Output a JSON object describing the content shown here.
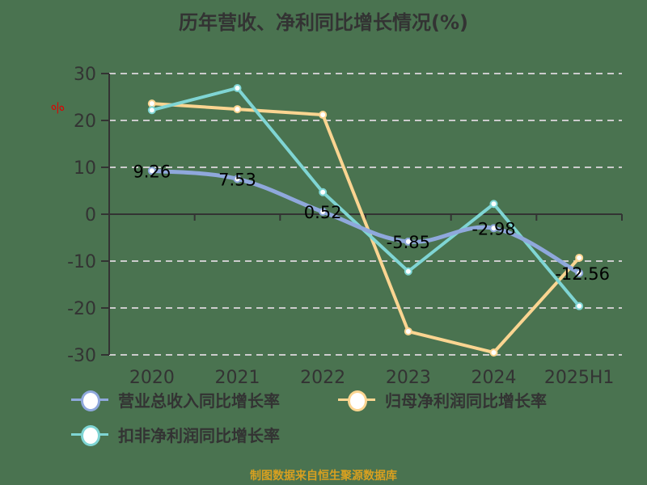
{
  "title": "历年营收、净利同比增长情况(%)",
  "unit_label": "%",
  "source": "制图数据来自恒生聚源数据库",
  "colors": {
    "background": "#4a7350",
    "revenue": "#8fa8dc",
    "net_profit": "#fbd591",
    "deducted": "#7fd5d4",
    "axis": "#333333",
    "grid": "#cccccc",
    "unit": "#e00000",
    "source": "#d8a020"
  },
  "legend": [
    {
      "label": "营业总收入同比增长率",
      "color": "#8fa8dc"
    },
    {
      "label": "归母净利润同比增长率",
      "color": "#fbd591"
    },
    {
      "label": "扣非净利润同比增长率",
      "color": "#7fd5d4"
    }
  ],
  "chart_data": {
    "type": "line",
    "title": "历年营收、净利同比增长情况(%)",
    "xlabel": "",
    "ylabel": "%",
    "categories": [
      "2020",
      "2021",
      "2022",
      "2023",
      "2024",
      "2025H1"
    ],
    "ylim": [
      -30,
      30
    ],
    "yticks": [
      30,
      20,
      10,
      0,
      -10,
      -20,
      -30
    ],
    "grid": true,
    "legend_position": "bottom",
    "series": [
      {
        "name": "营业总收入同比增长率",
        "values": [
          9.26,
          7.53,
          0.52,
          -5.85,
          -2.98,
          -12.56
        ],
        "labels_shown": true,
        "smooth": true
      },
      {
        "name": "归母净利润同比增长率",
        "values": [
          23.6,
          22.4,
          21.2,
          -25.0,
          -29.5,
          -9.3
        ],
        "labels_shown": false
      },
      {
        "name": "扣非净利润同比增长率",
        "values": [
          22.2,
          26.9,
          4.7,
          -12.2,
          2.2,
          -19.6
        ],
        "labels_shown": false
      }
    ]
  }
}
